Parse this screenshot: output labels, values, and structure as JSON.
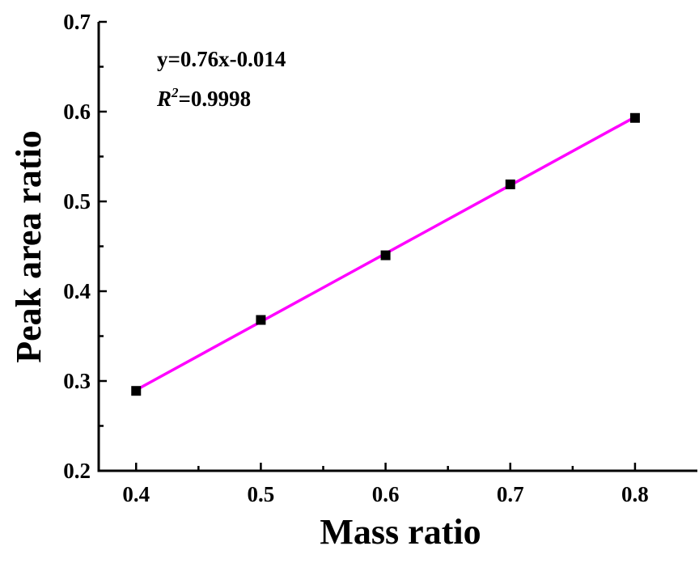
{
  "chart_data": {
    "type": "scatter",
    "xlabel": "Mass ratio",
    "ylabel": "Peak area ratio",
    "xlim": [
      0.37,
      0.85
    ],
    "ylim": [
      0.2,
      0.7
    ],
    "x_ticks": [
      "0.4",
      "0.5",
      "0.6",
      "0.7",
      "0.8"
    ],
    "y_ticks": [
      "0.2",
      "0.3",
      "0.4",
      "0.5",
      "0.6",
      "0.7"
    ],
    "series": [
      {
        "marker": "square",
        "color": "#000000",
        "x": [
          0.4,
          0.5,
          0.6,
          0.7,
          0.8
        ],
        "y": [
          0.289,
          0.368,
          0.44,
          0.519,
          0.593
        ]
      }
    ],
    "fit": {
      "slope": 0.76,
      "intercept": -0.014,
      "x_range": [
        0.4,
        0.8
      ],
      "color": "#ff00ff"
    },
    "annotations": {
      "equation": "y=0.76x-0.014",
      "r2_symbol": "R",
      "r2_power": "2",
      "r2_value": "=0.9998"
    },
    "grid": false,
    "legend": "none"
  }
}
